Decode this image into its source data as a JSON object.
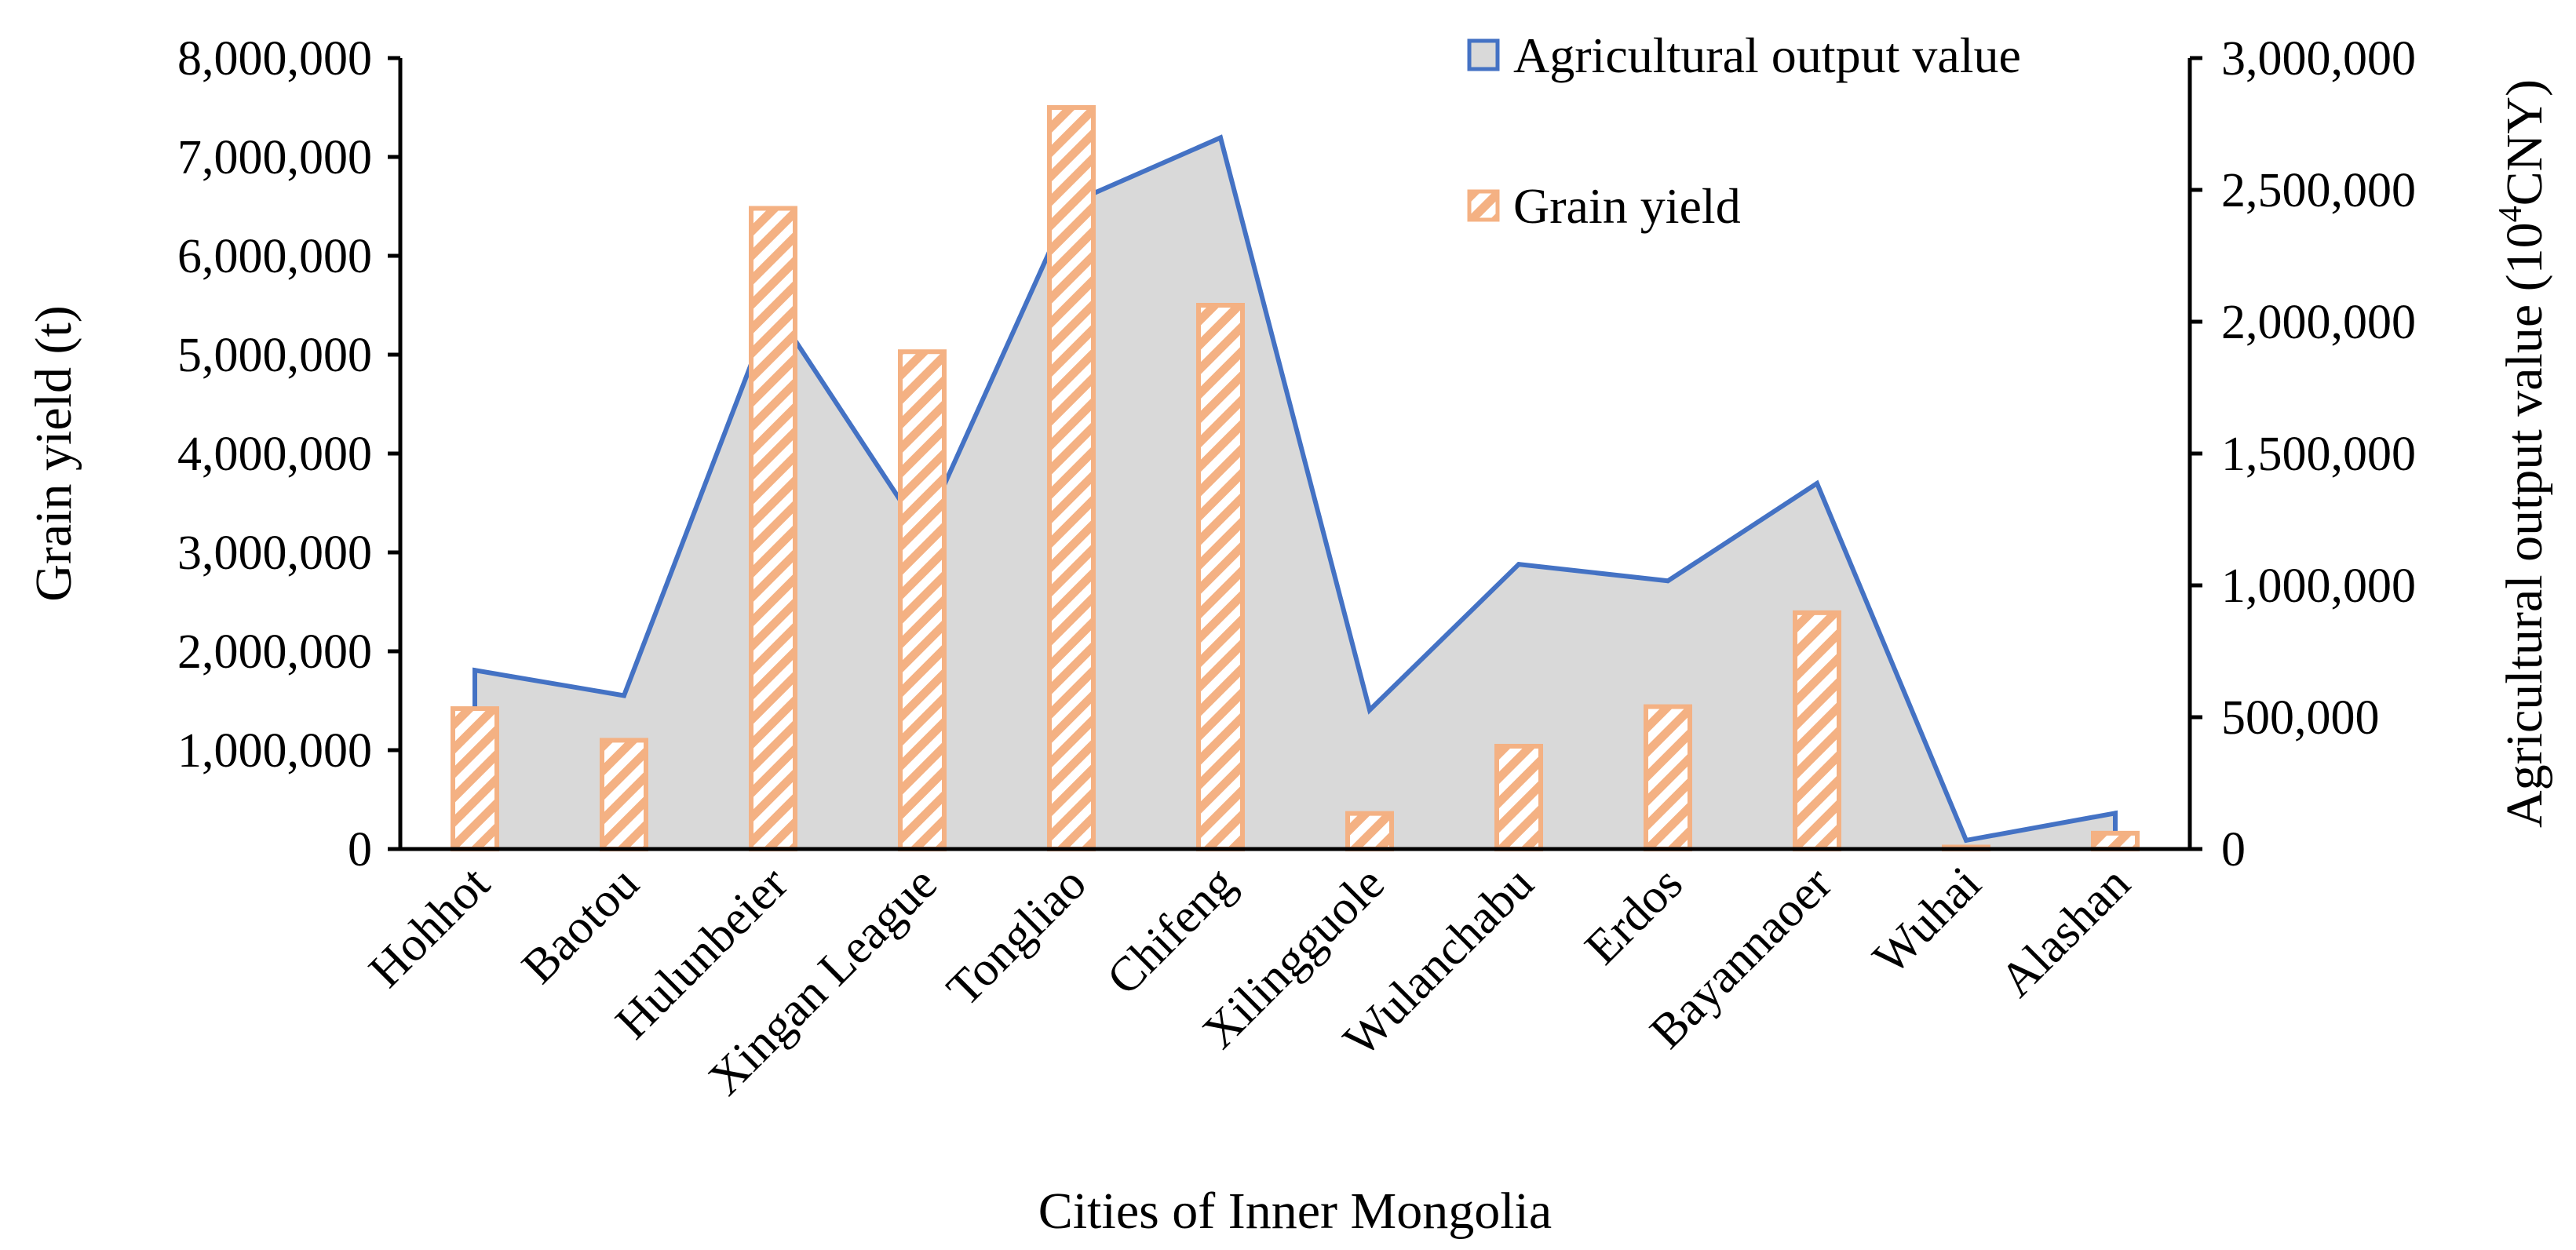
{
  "chart_data": {
    "type": "bar+area",
    "xlabel": "Cities of Inner Mongolia",
    "ylabel": "Grain yield (t)",
    "y2label_base": "Agricultural output value (10",
    "y2label_sup": "4",
    "y2label_tail": "CNY)",
    "categories": [
      "Hohhot",
      "Baotou",
      "Hulunbeier",
      "Xingan League",
      "Tongliao",
      "Chifeng",
      "Xilingguole",
      "Wulanchabu",
      "Erdos",
      "Bayannaoer",
      "Wuhai",
      "Alashan"
    ],
    "ylim": [
      0,
      8000000
    ],
    "y2lim": [
      0,
      3000000
    ],
    "yticks": [
      0,
      1000000,
      2000000,
      3000000,
      4000000,
      5000000,
      6000000,
      7000000,
      8000000
    ],
    "yticklabels": [
      "0",
      "1,000,000",
      "2,000,000",
      "3,000,000",
      "4,000,000",
      "5,000,000",
      "6,000,000",
      "7,000,000",
      "8,000,000"
    ],
    "y2ticks": [
      0,
      500000,
      1000000,
      1500000,
      2000000,
      2500000,
      3000000
    ],
    "y2ticklabels": [
      "0",
      "500,000",
      "1,000,000",
      "1,500,000",
      "2,000,000",
      "2,500,000",
      "3,000,000"
    ],
    "legend_position": "top-right",
    "series": [
      {
        "name": "Agricultural output value",
        "kind": "area",
        "axis": "right",
        "line_color": "#4472C4",
        "fill_color": "#D9D9D9",
        "values": [
          678000,
          582000,
          2056000,
          1196000,
          2450000,
          2698000,
          527000,
          1080000,
          1017000,
          1387000,
          33000,
          136000
        ]
      },
      {
        "name": "Grain yield",
        "kind": "bar",
        "axis": "left",
        "pattern": "diagonal-hatch",
        "color": "#F4B183",
        "values": [
          1420000,
          1100000,
          6480000,
          5030000,
          7500000,
          5500000,
          360000,
          1040000,
          1440000,
          2390000,
          20000,
          160000
        ]
      }
    ]
  }
}
